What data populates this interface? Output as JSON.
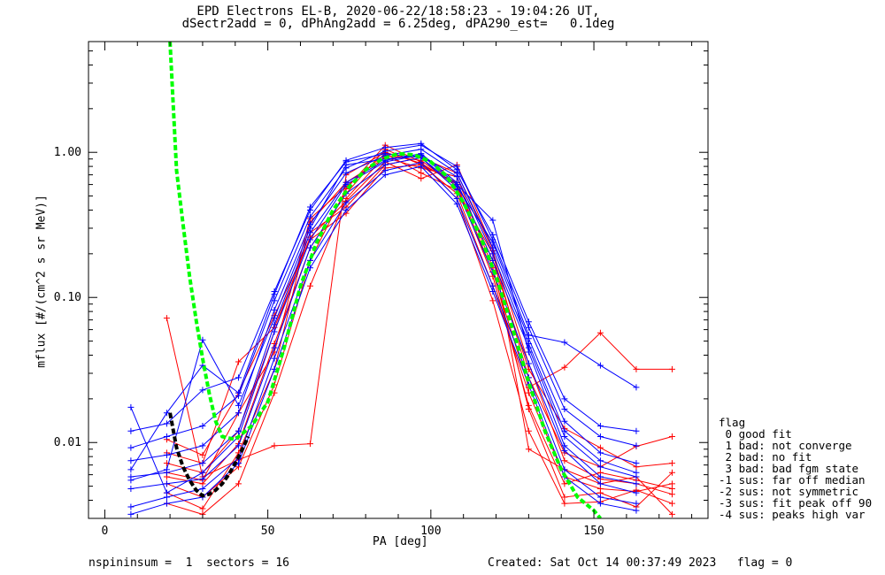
{
  "title_line1": "EPD Electrons EL-B, 2020-06-22/18:58:23 - 19:04:26 UT,",
  "title_line2": "dSectr2add = 0, dPhAng2add = 6.25deg, dPA290_est=   0.1deg",
  "footer_left": "nspininsum =  1  sectors = 16",
  "footer_right": "Created: Sat Oct 14 00:37:49 2023   flag = 0",
  "flag_legend": {
    "title": "flag",
    "items": [
      " 0 good fit",
      " 1 bad: not converge",
      " 2 bad: no fit",
      " 3 bad: bad fgm state",
      "-1 sus: far off median",
      "-2 sus: not symmetric",
      "-3 sus: fit peak off 90",
      "-4 sus: peaks high var"
    ]
  },
  "chart_data": {
    "type": "line",
    "xlabel": "PA [deg]",
    "ylabel": "mflux [#/(cm^2 s sr MeV)]",
    "xlim": [
      -5,
      185
    ],
    "ylim": [
      0.003,
      5.8
    ],
    "yscale": "log",
    "xticks": [
      0,
      50,
      100,
      150
    ],
    "xtick_labels": [
      "0",
      "50",
      "100",
      "150"
    ],
    "yticks": [
      0.01,
      0.1,
      1.0
    ],
    "ytick_labels": [
      "0.01",
      "0.10",
      "1.00"
    ],
    "colors": {
      "red": "#ff0000",
      "blue": "#0000ff",
      "green": "#00ff00",
      "black": "#000000"
    },
    "pa_grid": [
      8,
      19,
      30,
      41,
      52,
      63,
      74,
      86,
      97,
      108,
      119,
      130,
      141,
      152,
      163,
      174
    ],
    "series": [
      {
        "color": "red",
        "x": [
          19,
          30,
          41,
          52,
          63,
          74,
          86,
          97,
          108,
          119,
          130,
          141,
          152,
          163,
          174
        ],
        "y": [
          0.0058,
          0.0052,
          0.0098,
          0.048,
          0.22,
          0.52,
          1.05,
          0.82,
          0.52,
          0.12,
          0.022,
          0.0058,
          0.0048,
          0.0046,
          0.0052
        ]
      },
      {
        "color": "red",
        "x": [
          19,
          30,
          41,
          52,
          63,
          74,
          86,
          97,
          108,
          119,
          130,
          141,
          152,
          163,
          174
        ],
        "y": [
          0.0045,
          0.0035,
          0.0085,
          0.032,
          0.33,
          0.62,
          0.92,
          0.78,
          0.68,
          0.16,
          0.017,
          0.0042,
          0.0045,
          0.0036,
          0.0062
        ]
      },
      {
        "color": "red",
        "x": [
          19,
          30,
          41,
          52,
          63,
          74,
          86,
          97,
          108,
          119,
          130,
          141,
          152,
          163,
          174
        ],
        "y": [
          0.0072,
          0.0062,
          0.012,
          0.058,
          0.28,
          0.42,
          0.82,
          0.92,
          0.72,
          0.21,
          0.035,
          0.0075,
          0.0056,
          0.0052,
          0.0044
        ]
      },
      {
        "color": "red",
        "x": [
          19,
          30,
          41,
          52,
          63,
          74,
          86,
          97,
          108,
          119,
          130,
          141,
          152,
          163,
          174
        ],
        "y": [
          0.0052,
          0.0042,
          0.0068,
          0.025,
          0.18,
          0.56,
          1.12,
          0.86,
          0.48,
          0.095,
          0.012,
          0.0038,
          0.0039,
          0.0047,
          0.0038
        ]
      },
      {
        "color": "red",
        "x": [
          19,
          30,
          41,
          52,
          63,
          74,
          86,
          97,
          108,
          119,
          130,
          141,
          152,
          163,
          174
        ],
        "y": [
          0.0105,
          0.0082,
          0.022,
          0.075,
          0.25,
          0.38,
          0.78,
          0.82,
          0.62,
          0.18,
          0.032,
          0.0125,
          0.0092,
          0.0068,
          0.0072
        ]
      },
      {
        "color": "red",
        "x": [
          19,
          30,
          41,
          52,
          63,
          74,
          86,
          97,
          108,
          119,
          130,
          141,
          152,
          163,
          174
        ],
        "y": [
          0.0038,
          0.0032,
          0.0052,
          0.022,
          0.12,
          0.48,
          0.95,
          0.88,
          0.58,
          0.14,
          0.018,
          0.0052,
          0.0062,
          0.0055,
          0.0048
        ]
      },
      {
        "color": "red",
        "x": [
          19,
          30,
          41,
          52,
          63,
          74,
          86,
          97,
          108,
          119,
          130,
          141,
          152,
          163,
          174
        ],
        "y": [
          0.0062,
          0.0055,
          0.016,
          0.042,
          0.35,
          0.58,
          0.98,
          0.72,
          0.55,
          0.2,
          0.028,
          0.0085,
          0.0068,
          0.0094,
          0.011
        ]
      },
      {
        "color": "red",
        "x": [
          19,
          30,
          41,
          52,
          63,
          74,
          86,
          97,
          108,
          119,
          130,
          141,
          152,
          163,
          174
        ],
        "y": [
          0.0085,
          0.0072,
          0.036,
          0.062,
          0.26,
          0.46,
          0.86,
          0.66,
          0.82,
          0.22,
          0.009,
          0.0065,
          0.0052,
          0.0058,
          0.0032
        ]
      },
      {
        "color": "red",
        "x": [
          19,
          30,
          41,
          52,
          63,
          74,
          86,
          97,
          108,
          119,
          130,
          141,
          152,
          163,
          174
        ],
        "y": [
          0.072,
          0.0058,
          0.0076,
          0.0095,
          0.0098,
          0.7,
          1.0,
          0.84,
          0.6,
          0.15,
          0.024,
          0.033,
          0.057,
          0.032,
          0.032
        ]
      },
      {
        "color": "blue",
        "x": [
          8,
          19,
          30,
          41,
          52,
          63,
          74,
          86,
          97,
          108,
          119,
          130,
          141,
          152,
          163
        ],
        "y": [
          0.0058,
          0.0062,
          0.0072,
          0.012,
          0.065,
          0.28,
          0.62,
          0.88,
          0.98,
          0.62,
          0.18,
          0.045,
          0.011,
          0.0068,
          0.0058
        ]
      },
      {
        "color": "blue",
        "x": [
          8,
          19,
          30,
          41,
          52,
          63,
          74,
          86,
          97,
          108,
          119,
          130,
          141,
          152,
          163
        ],
        "y": [
          0.0075,
          0.0082,
          0.0095,
          0.016,
          0.082,
          0.32,
          0.72,
          0.95,
          1.05,
          0.72,
          0.22,
          0.052,
          0.014,
          0.0085,
          0.0072
        ]
      },
      {
        "color": "blue",
        "x": [
          8,
          19,
          30,
          41,
          52,
          63,
          74,
          86,
          97,
          108,
          119,
          130,
          141,
          152,
          163
        ],
        "y": [
          0.0048,
          0.0052,
          0.0056,
          0.0095,
          0.045,
          0.22,
          0.52,
          0.82,
          0.92,
          0.55,
          0.15,
          0.035,
          0.0088,
          0.0052,
          0.0045
        ]
      },
      {
        "color": "blue",
        "x": [
          8,
          19,
          30,
          41,
          52,
          63,
          74,
          86,
          97,
          108,
          119,
          130,
          141,
          152,
          163
        ],
        "y": [
          0.0092,
          0.011,
          0.013,
          0.021,
          0.095,
          0.36,
          0.78,
          1.02,
          1.12,
          0.8,
          0.25,
          0.062,
          0.017,
          0.011,
          0.0095
        ]
      },
      {
        "color": "blue",
        "x": [
          8,
          19,
          30,
          41,
          52,
          63,
          74,
          86,
          97,
          108,
          119,
          130,
          141,
          152,
          163
        ],
        "y": [
          0.0036,
          0.0042,
          0.0048,
          0.0078,
          0.038,
          0.18,
          0.45,
          0.75,
          0.85,
          0.48,
          0.12,
          0.028,
          0.0065,
          0.0042,
          0.0038
        ]
      },
      {
        "color": "blue",
        "x": [
          8,
          19,
          30,
          41,
          52,
          63,
          74,
          86,
          97,
          108,
          119,
          130,
          141,
          152,
          163
        ],
        "y": [
          0.0065,
          0.016,
          0.034,
          0.022,
          0.105,
          0.42,
          0.86,
          0.98,
          0.92,
          0.58,
          0.24,
          0.055,
          0.049,
          0.034,
          0.024
        ]
      },
      {
        "color": "blue",
        "x": [
          8,
          19,
          30,
          41,
          52,
          63,
          74,
          86,
          97,
          108,
          119,
          130,
          141,
          152,
          163
        ],
        "y": [
          0.0055,
          0.0065,
          0.051,
          0.018,
          0.072,
          0.3,
          0.82,
          0.9,
          0.95,
          0.68,
          0.2,
          0.048,
          0.012,
          0.0075,
          0.0062
        ]
      },
      {
        "color": "blue",
        "x": [
          8,
          19,
          30,
          41,
          52,
          63,
          74,
          86,
          97,
          108,
          119,
          130,
          141,
          152,
          163
        ],
        "y": [
          0.0175,
          0.0045,
          0.0062,
          0.011,
          0.058,
          0.25,
          0.6,
          0.86,
          0.96,
          0.6,
          0.34,
          0.042,
          0.0095,
          0.0058,
          0.0052
        ]
      },
      {
        "color": "blue",
        "x": [
          8,
          19,
          30,
          41,
          52,
          63,
          74,
          86,
          97,
          108,
          119,
          130,
          141,
          152,
          163
        ],
        "y": [
          0.0032,
          0.0038,
          0.0042,
          0.0072,
          0.032,
          0.16,
          0.4,
          0.7,
          0.8,
          0.44,
          0.11,
          0.025,
          0.0058,
          0.0038,
          0.0034
        ]
      },
      {
        "color": "blue",
        "x": [
          8,
          19,
          30,
          41,
          52,
          63,
          74,
          86,
          97,
          108,
          119,
          130,
          141,
          152,
          163
        ],
        "y": [
          0.012,
          0.0135,
          0.023,
          0.028,
          0.11,
          0.4,
          0.88,
          1.08,
          1.15,
          0.76,
          0.27,
          0.068,
          0.02,
          0.013,
          0.012
        ]
      }
    ],
    "fit_curves": [
      {
        "color": "green",
        "x": [
          20,
          22,
          24,
          26,
          28,
          30,
          32,
          34,
          36,
          40,
          45,
          50,
          55,
          60,
          65,
          70,
          75,
          80,
          85,
          90,
          95,
          100,
          105,
          110,
          115,
          120,
          125,
          130,
          135,
          140,
          145,
          150,
          152
        ],
        "y": [
          5.8,
          0.75,
          0.32,
          0.14,
          0.07,
          0.038,
          0.022,
          0.014,
          0.011,
          0.0105,
          0.013,
          0.019,
          0.045,
          0.12,
          0.24,
          0.4,
          0.58,
          0.76,
          0.9,
          0.98,
          0.96,
          0.86,
          0.68,
          0.45,
          0.27,
          0.14,
          0.062,
          0.026,
          0.012,
          0.0065,
          0.0042,
          0.0034,
          0.003
        ]
      },
      {
        "color": "black",
        "x": [
          20,
          22,
          24,
          26,
          28,
          30,
          32,
          34,
          36,
          38,
          40,
          42,
          44
        ],
        "y": [
          0.016,
          0.0092,
          0.0068,
          0.0055,
          0.0047,
          0.0043,
          0.0044,
          0.0047,
          0.0052,
          0.006,
          0.0072,
          0.0088,
          0.011
        ]
      }
    ]
  }
}
